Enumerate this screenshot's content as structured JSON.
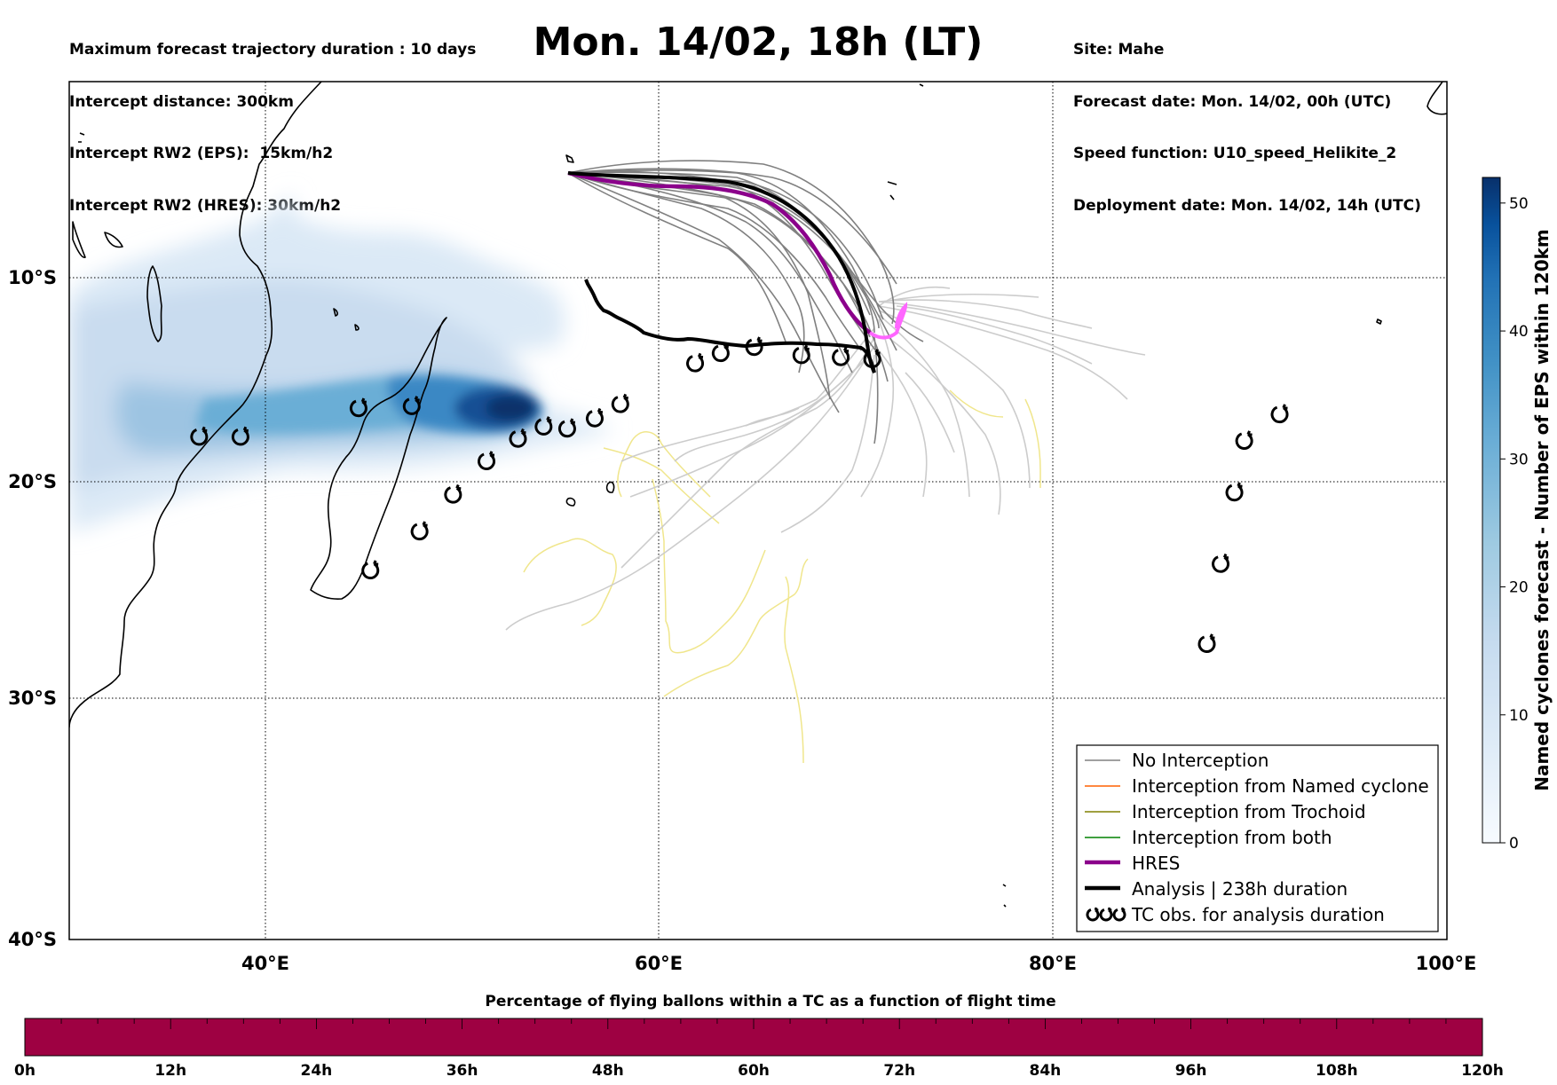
{
  "header": {
    "left_lines": [
      "Maximum forecast trajectory duration : 10 days",
      "Intercept distance: 300km",
      "Intercept RW2 (EPS):  15km/h2",
      "Intercept RW2 (HRES): 30km/h2"
    ],
    "title": "Mon. 14/02, 18h (LT)",
    "right_lines": [
      "Site: Mahe",
      "Forecast date: Mon. 14/02, 00h (UTC)",
      "Speed function: U10_speed_Helikite_2",
      "Deployment date: Mon. 14/02, 14h (UTC)"
    ]
  },
  "map": {
    "lon_range": [
      30,
      100
    ],
    "lat_range": [
      -40,
      -0.3
    ],
    "lon_ticks": [
      {
        "value": 40,
        "label": "40°E"
      },
      {
        "value": 60,
        "label": "60°E"
      },
      {
        "value": 80,
        "label": "80°E"
      },
      {
        "value": 100,
        "label": "100°E"
      }
    ],
    "lat_ticks": [
      {
        "value": -10,
        "label": "10°S"
      },
      {
        "value": -20,
        "label": "20°S"
      },
      {
        "value": -30,
        "label": "30°S"
      },
      {
        "value": -40,
        "label": "40°S"
      }
    ],
    "gridlines": true,
    "coastline_color": "#000000",
    "colors": {
      "no_interception": "#808080",
      "no_interception_light": "#cccccc",
      "interception_named_cyclone": "#ff6000",
      "interception_trochoid": "#808000",
      "interception_both": "#008000",
      "hres": "#8b008b",
      "hres_late": "#ff66ff",
      "analysis": "#000000",
      "trochoid_track": "#f0e68c"
    }
  },
  "colorbar": {
    "label": "Named cyclones forecast - Number of EPS within 120km",
    "range": [
      0,
      52
    ],
    "ticks": [
      0,
      10,
      20,
      30,
      40,
      50
    ],
    "colormap": "Blues"
  },
  "legend": {
    "placement": "lower-right",
    "items": [
      {
        "label": "No Interception",
        "color": "#808080",
        "style": "thin"
      },
      {
        "label": "Interception from Named cyclone",
        "color": "#ff6000",
        "style": "thin"
      },
      {
        "label": "Interception from Trochoid",
        "color": "#808000",
        "style": "thin"
      },
      {
        "label": "Interception from both",
        "color": "#008000",
        "style": "thin"
      },
      {
        "label": "HRES",
        "color": "#8b008b",
        "style": "thick"
      },
      {
        "label": "Analysis | 238h duration",
        "color": "#000000",
        "style": "thick"
      },
      {
        "label": "TC obs. for analysis duration",
        "color": "#000000",
        "style": "tc-symbols"
      }
    ]
  },
  "tc_observations": [
    {
      "lon": 36.6,
      "lat": -17.8
    },
    {
      "lon": 38.7,
      "lat": -17.8
    },
    {
      "lon": 44.7,
      "lat": -16.4
    },
    {
      "lon": 47.4,
      "lat": -16.3
    },
    {
      "lon": 49.5,
      "lat": -20.6
    },
    {
      "lon": 51.2,
      "lat": -19.0
    },
    {
      "lon": 52.8,
      "lat": -17.9
    },
    {
      "lon": 54.1,
      "lat": -17.3
    },
    {
      "lon": 55.3,
      "lat": -17.4
    },
    {
      "lon": 56.7,
      "lat": -16.9
    },
    {
      "lon": 58.0,
      "lat": -16.2
    },
    {
      "lon": 61.8,
      "lat": -14.2
    },
    {
      "lon": 63.1,
      "lat": -13.7
    },
    {
      "lon": 64.8,
      "lat": -13.4
    },
    {
      "lon": 67.2,
      "lat": -13.8
    },
    {
      "lon": 69.2,
      "lat": -13.9
    },
    {
      "lon": 70.8,
      "lat": -14.0
    },
    {
      "lon": 45.3,
      "lat": -24.1
    },
    {
      "lon": 47.8,
      "lat": -22.3
    },
    {
      "lon": 91.5,
      "lat": -16.7
    },
    {
      "lon": 89.7,
      "lat": -18.0
    },
    {
      "lon": 89.2,
      "lat": -20.5
    },
    {
      "lon": 88.5,
      "lat": -23.8
    },
    {
      "lon": 87.8,
      "lat": -27.5
    }
  ],
  "bottom_bar": {
    "title": "Percentage of flying ballons within a TC as a function of flight time",
    "tick_labels": [
      "0h",
      "12h",
      "24h",
      "36h",
      "48h",
      "60h",
      "72h",
      "84h",
      "96h",
      "108h",
      "120h"
    ],
    "fill_color": "#9e0142"
  }
}
